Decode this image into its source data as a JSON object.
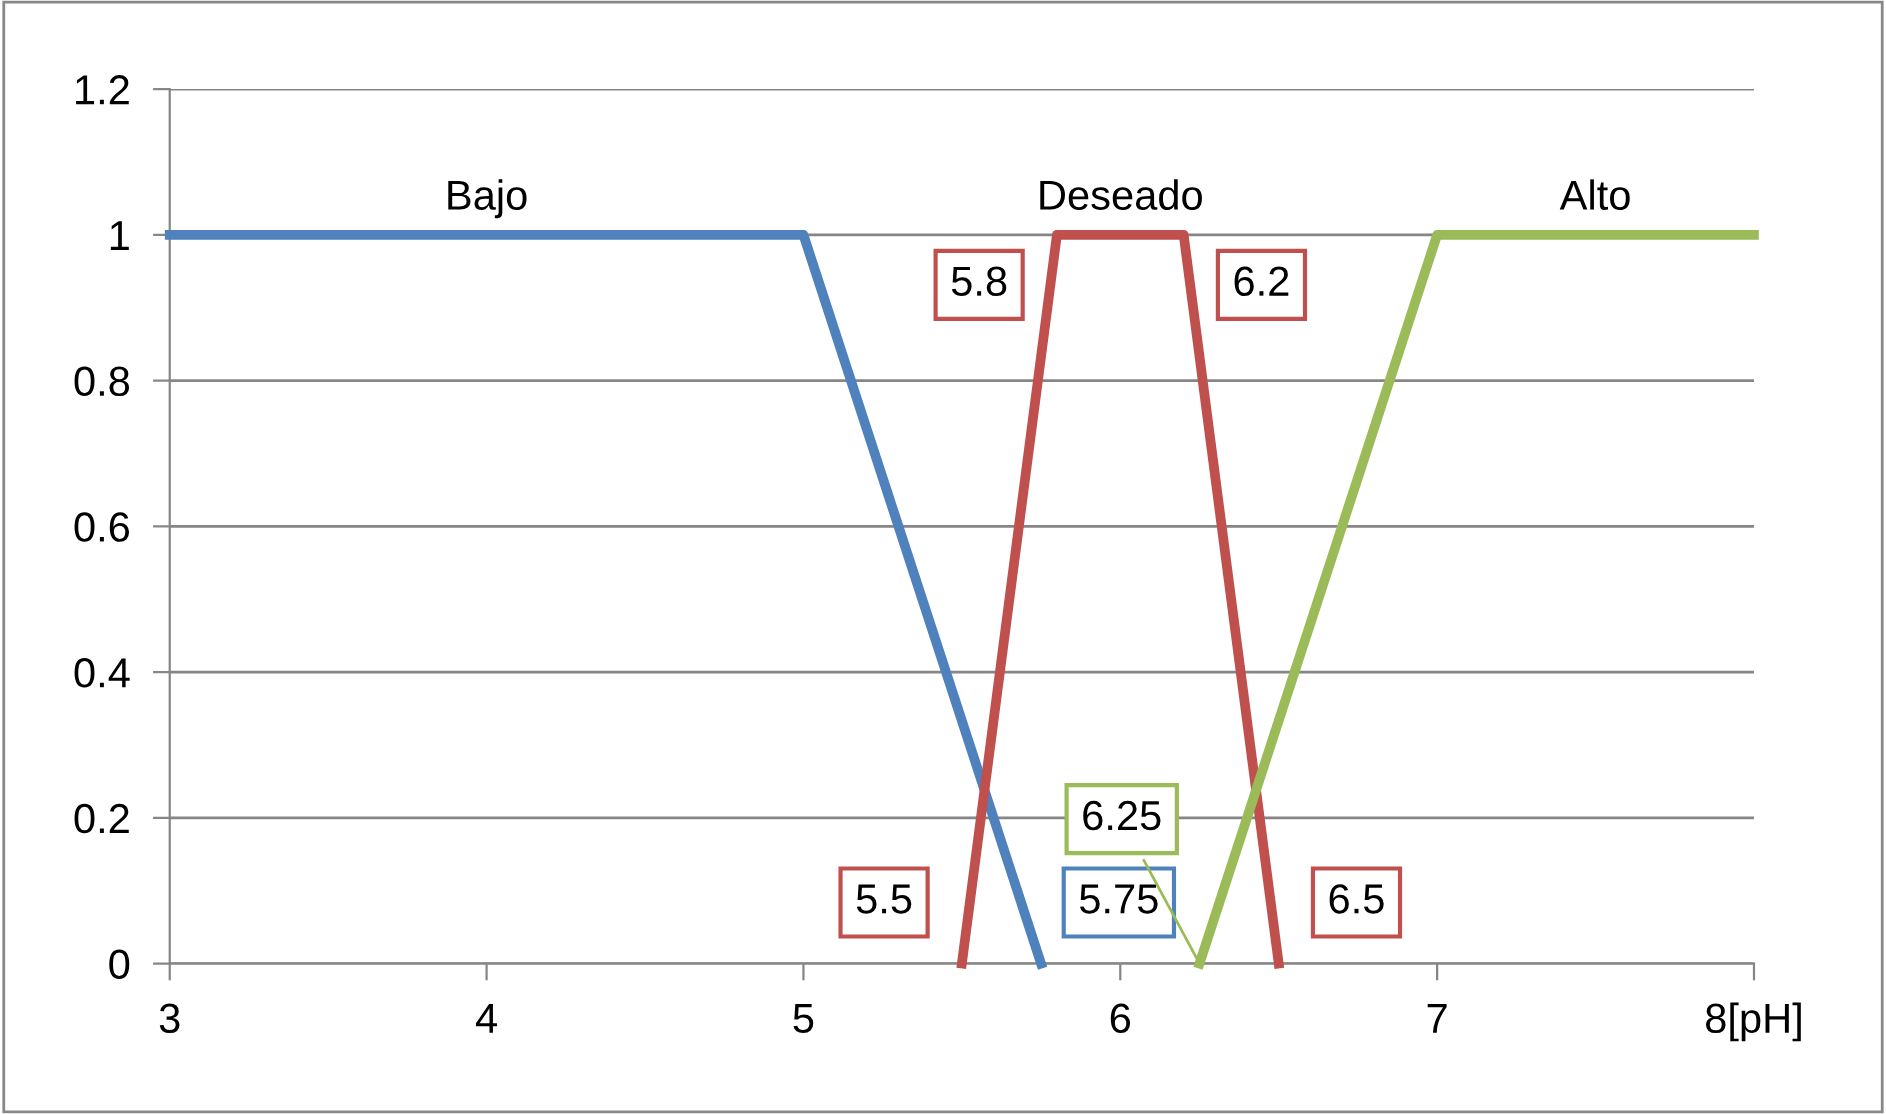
{
  "chart_data": {
    "type": "line",
    "series": [
      {
        "name": "Bajo",
        "color": "#4f81bd",
        "x": [
          3,
          5,
          5.75
        ],
        "values": [
          1,
          1,
          0
        ]
      },
      {
        "name": "Deseado",
        "color": "#c0504d",
        "x": [
          5.5,
          5.8,
          6.2,
          6.5
        ],
        "values": [
          0,
          1,
          1,
          0
        ]
      },
      {
        "name": "Alto",
        "color": "#9bbb59",
        "x": [
          6.25,
          7,
          8
        ],
        "values": [
          0,
          1,
          1
        ]
      }
    ],
    "annotations": [
      {
        "text": "5.8",
        "x": 5.8,
        "y": 1
      },
      {
        "text": "6.2",
        "x": 6.2,
        "y": 1
      },
      {
        "text": "5.5",
        "x": 5.5,
        "y": 0
      },
      {
        "text": "5.75",
        "x": 5.75,
        "y": 0
      },
      {
        "text": "6.25",
        "x": 6.25,
        "y": 0
      },
      {
        "text": "6.5",
        "x": 6.5,
        "y": 0
      }
    ],
    "xlim": [
      3,
      8
    ],
    "xticks": [
      3,
      4,
      5,
      6,
      7,
      {
        "value": 8,
        "label": "8[pH]"
      }
    ],
    "ylim": [
      0,
      1.2
    ],
    "yticks": [
      0,
      0.2,
      0.4,
      0.6,
      0.8,
      1,
      1.2
    ],
    "grid": "y",
    "legend": false,
    "marker": "none",
    "line_style": "solid"
  }
}
